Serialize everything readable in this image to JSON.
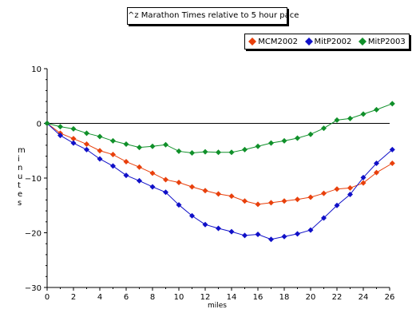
{
  "chart_data": {
    "type": "line",
    "title": "^z Marathon Times relative to 5 hour pace",
    "xlabel": "miles",
    "ylabel": "minutes",
    "xlim": [
      0,
      26
    ],
    "ylim": [
      -30,
      10
    ],
    "x_ticks": [
      0,
      2,
      4,
      6,
      8,
      10,
      12,
      14,
      16,
      18,
      20,
      22,
      24,
      26
    ],
    "y_ticks": [
      10,
      0,
      -10,
      -20,
      -30
    ],
    "legend_position": "top-right",
    "grid": false,
    "x": [
      0,
      1,
      2,
      3,
      4,
      5,
      6,
      7,
      8,
      9,
      10,
      11,
      12,
      13,
      14,
      15,
      16,
      17,
      18,
      19,
      20,
      21,
      22,
      23,
      24,
      25,
      26.2
    ],
    "series": [
      {
        "name": "MCM2002",
        "color": "#e8400c",
        "values": [
          0,
          -1.8,
          -2.8,
          -3.8,
          -5.0,
          -5.7,
          -7.0,
          -8.0,
          -9.1,
          -10.3,
          -10.8,
          -11.6,
          -12.3,
          -12.9,
          -13.3,
          -14.2,
          -14.8,
          -14.5,
          -14.2,
          -13.9,
          -13.5,
          -12.8,
          -12.0,
          -11.8,
          -10.9,
          -9.0,
          -7.3
        ]
      },
      {
        "name": "MitP2002",
        "color": "#1010c8",
        "values": [
          0,
          -2.2,
          -3.6,
          -4.8,
          -6.5,
          -7.8,
          -9.5,
          -10.5,
          -11.6,
          -12.6,
          -14.9,
          -16.9,
          -18.5,
          -19.2,
          -19.8,
          -20.5,
          -20.3,
          -21.2,
          -20.7,
          -20.2,
          -19.5,
          -17.3,
          -15.0,
          -13.0,
          -9.9,
          -7.3,
          -4.8
        ]
      },
      {
        "name": "MitP2003",
        "color": "#10902a",
        "values": [
          0,
          -0.6,
          -1.0,
          -1.8,
          -2.4,
          -3.2,
          -3.8,
          -4.4,
          -4.2,
          -3.9,
          -5.1,
          -5.4,
          -5.2,
          -5.3,
          -5.3,
          -4.8,
          -4.2,
          -3.6,
          -3.2,
          -2.7,
          -2.0,
          -0.9,
          0.6,
          0.9,
          1.7,
          2.5,
          3.6
        ]
      }
    ]
  }
}
